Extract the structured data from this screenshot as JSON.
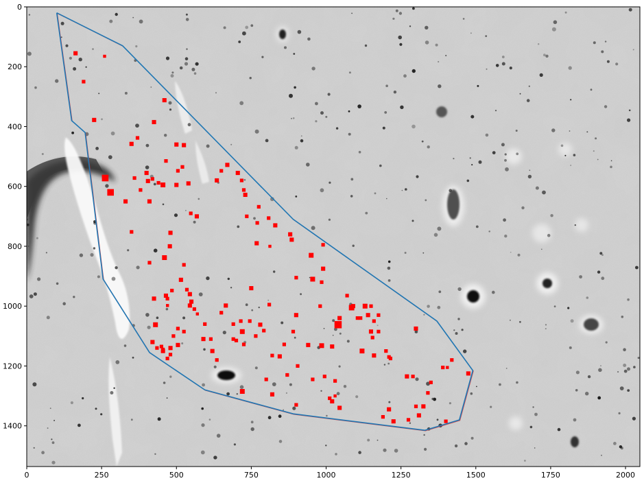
{
  "figure": {
    "x_ticks": [
      "0",
      "250",
      "500",
      "750",
      "1000",
      "1250",
      "1500",
      "1750",
      "2000"
    ],
    "y_ticks": [
      "0",
      "200",
      "400",
      "600",
      "800",
      "1000",
      "1200",
      "1400"
    ]
  },
  "chart_data": {
    "type": "scatter",
    "title": "",
    "xlabel": "",
    "ylabel": "",
    "xlim": [
      0,
      2048
    ],
    "ylim": [
      1536,
      0
    ],
    "grid": false,
    "image_background": "grayscale microscopy tissue section",
    "colors": {
      "markers": "#ff0000",
      "outline": "#1f77b4",
      "outline_faint": "#d62728"
    },
    "outline_polygon": [
      [
        100,
        20
      ],
      [
        320,
        130
      ],
      [
        890,
        710
      ],
      [
        1370,
        1050
      ],
      [
        1490,
        1215
      ],
      [
        1445,
        1380
      ],
      [
        1330,
        1415
      ],
      [
        890,
        1360
      ],
      [
        595,
        1280
      ],
      [
        410,
        1155
      ],
      [
        255,
        910
      ],
      [
        195,
        420
      ],
      [
        150,
        380
      ],
      [
        100,
        20
      ]
    ],
    "markers": [
      [
        163,
        155,
        14
      ],
      [
        262,
        572,
        22
      ],
      [
        280,
        620,
        22
      ],
      [
        190,
        250,
        12
      ],
      [
        225,
        378,
        14
      ],
      [
        260,
        165,
        10
      ],
      [
        460,
        312,
        14
      ],
      [
        425,
        385,
        14
      ],
      [
        330,
        650,
        14
      ],
      [
        350,
        458,
        14
      ],
      [
        370,
        438,
        12
      ],
      [
        360,
        572,
        12
      ],
      [
        380,
        612,
        12
      ],
      [
        405,
        582,
        14
      ],
      [
        400,
        555,
        14
      ],
      [
        410,
        650,
        14
      ],
      [
        420,
        575,
        12
      ],
      [
        440,
        588,
        12
      ],
      [
        455,
        595,
        16
      ],
      [
        465,
        515,
        12
      ],
      [
        500,
        460,
        14
      ],
      [
        520,
        535,
        12
      ],
      [
        525,
        462,
        14
      ],
      [
        505,
        548,
        12
      ],
      [
        500,
        595,
        14
      ],
      [
        540,
        590,
        14
      ],
      [
        548,
        690,
        12
      ],
      [
        568,
        700,
        14
      ],
      [
        635,
        580,
        14
      ],
      [
        650,
        548,
        12
      ],
      [
        670,
        528,
        14
      ],
      [
        705,
        555,
        14
      ],
      [
        718,
        580,
        12
      ],
      [
        725,
        612,
        12
      ],
      [
        730,
        628,
        14
      ],
      [
        775,
        668,
        12
      ],
      [
        735,
        700,
        12
      ],
      [
        770,
        722,
        12
      ],
      [
        808,
        706,
        12
      ],
      [
        830,
        730,
        14
      ],
      [
        880,
        760,
        14
      ],
      [
        885,
        778,
        14
      ],
      [
        950,
        830,
        16
      ],
      [
        990,
        795,
        12
      ],
      [
        990,
        875,
        14
      ],
      [
        955,
        910,
        16
      ],
      [
        985,
        920,
        12
      ],
      [
        900,
        905,
        12
      ],
      [
        350,
        752,
        12
      ],
      [
        410,
        855,
        12
      ],
      [
        460,
        838,
        16
      ],
      [
        478,
        800,
        14
      ],
      [
        480,
        755,
        14
      ],
      [
        485,
        948,
        12
      ],
      [
        515,
        912,
        14
      ],
      [
        525,
        862,
        12
      ],
      [
        545,
        960,
        14
      ],
      [
        545,
        998,
        14
      ],
      [
        560,
        1010,
        12
      ],
      [
        570,
        1026,
        10
      ],
      [
        595,
        1060,
        12
      ],
      [
        615,
        1110,
        12
      ],
      [
        620,
        1150,
        14
      ],
      [
        635,
        1180,
        12
      ],
      [
        665,
        998,
        14
      ],
      [
        690,
        1110,
        12
      ],
      [
        715,
        1050,
        12
      ],
      [
        720,
        1085,
        16
      ],
      [
        725,
        1128,
        12
      ],
      [
        745,
        1050,
        12
      ],
      [
        750,
        940,
        14
      ],
      [
        765,
        1100,
        12
      ],
      [
        768,
        790,
        14
      ],
      [
        780,
        1062,
        14
      ],
      [
        792,
        1082,
        12
      ],
      [
        812,
        800,
        10
      ],
      [
        810,
        995,
        12
      ],
      [
        820,
        1165,
        12
      ],
      [
        845,
        1168,
        14
      ],
      [
        860,
        1128,
        12
      ],
      [
        870,
        1230,
        12
      ],
      [
        890,
        1085,
        12
      ],
      [
        900,
        1030,
        14
      ],
      [
        905,
        1200,
        12
      ],
      [
        940,
        1130,
        14
      ],
      [
        955,
        1245,
        12
      ],
      [
        985,
        1132,
        16
      ],
      [
        995,
        1235,
        12
      ],
      [
        1020,
        1135,
        14
      ],
      [
        1012,
        1308,
        12
      ],
      [
        1030,
        1250,
        12
      ],
      [
        1040,
        1062,
        24
      ],
      [
        1045,
        1040,
        14
      ],
      [
        1045,
        1340,
        14
      ],
      [
        1070,
        965,
        12
      ],
      [
        1085,
        1005,
        18
      ],
      [
        1115,
        1040,
        12
      ],
      [
        1120,
        1150,
        16
      ],
      [
        1130,
        1000,
        16
      ],
      [
        1140,
        1030,
        14
      ],
      [
        1150,
        1085,
        14
      ],
      [
        1155,
        1105,
        12
      ],
      [
        1160,
        1165,
        14
      ],
      [
        1200,
        1150,
        12
      ],
      [
        1210,
        1170,
        12
      ],
      [
        1215,
        1175,
        12
      ],
      [
        1270,
        1235,
        14
      ],
      [
        1300,
        1075,
        14
      ],
      [
        1225,
        1385,
        14
      ],
      [
        1190,
        1370,
        12
      ],
      [
        1300,
        1335,
        12
      ],
      [
        1310,
        1365,
        14
      ],
      [
        1325,
        1335,
        14
      ],
      [
        1340,
        1290,
        12
      ],
      [
        1350,
        1255,
        12
      ],
      [
        1390,
        1205,
        12
      ],
      [
        1400,
        1385,
        12
      ],
      [
        1420,
        1180,
        12
      ],
      [
        1475,
        1225,
        14
      ],
      [
        1405,
        1205,
        10
      ],
      [
        720,
        1285,
        16
      ],
      [
        800,
        1245,
        12
      ],
      [
        820,
        1295,
        14
      ],
      [
        900,
        1330,
        12
      ],
      [
        1020,
        1318,
        14
      ],
      [
        1030,
        1300,
        10
      ],
      [
        470,
        998,
        10
      ],
      [
        470,
        975,
        12
      ],
      [
        465,
        965,
        14
      ],
      [
        450,
        1135,
        12
      ],
      [
        455,
        1150,
        14
      ],
      [
        455,
        1145,
        12
      ],
      [
        420,
        1120,
        14
      ],
      [
        425,
        975,
        14
      ],
      [
        430,
        1062,
        16
      ],
      [
        435,
        1140,
        12
      ],
      [
        480,
        1140,
        14
      ],
      [
        480,
        1162,
        12
      ],
      [
        490,
        1100,
        12
      ],
      [
        505,
        1075,
        12
      ],
      [
        505,
        1130,
        14
      ],
      [
        525,
        1085,
        12
      ],
      [
        535,
        945,
        12
      ],
      [
        550,
        985,
        14
      ],
      [
        470,
        1175,
        12
      ],
      [
        590,
        1110,
        14
      ],
      [
        650,
        1022,
        12
      ],
      [
        690,
        1060,
        12
      ],
      [
        700,
        1115,
        12
      ],
      [
        1175,
        1030,
        12
      ],
      [
        1210,
        1345,
        14
      ],
      [
        1290,
        1235,
        12
      ],
      [
        1150,
        1000,
        12
      ],
      [
        1160,
        1050,
        12
      ],
      [
        980,
        1000,
        12
      ],
      [
        1175,
        1085,
        12
      ],
      [
        1105,
        1040,
        12
      ],
      [
        1090,
        1000,
        14
      ],
      [
        1275,
        1380,
        12
      ]
    ]
  }
}
